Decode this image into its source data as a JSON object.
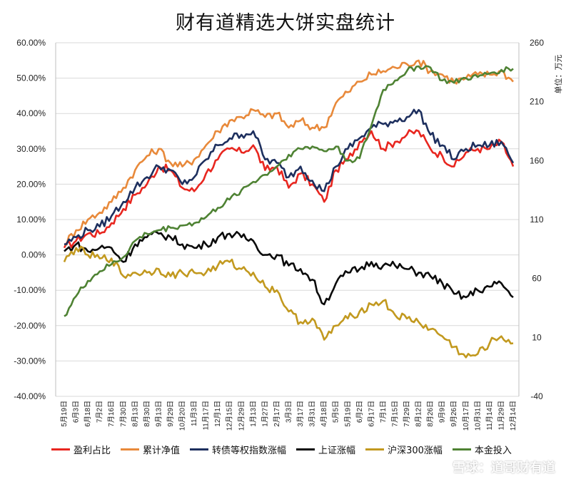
{
  "watermark": "雪球：道哥财有道",
  "colors": {
    "profit_ratio": "#e8261f",
    "cumulative_nav": "#e8893a",
    "cb_index": "#1d2f5e",
    "sse": "#0a0a0a",
    "csi300": "#c2991f",
    "principal": "#4e8233",
    "grid": "#d9d9d9"
  },
  "chart_data": {
    "type": "line",
    "title": "财有道精选大饼实盘统计",
    "y_left": {
      "ticks": [
        "60.00%",
        "50.00%",
        "40.00%",
        "30.00%",
        "20.00%",
        "10.00%",
        "0.00%",
        "-10.00%",
        "-20.00%",
        "-30.00%",
        "-40.00%"
      ],
      "range": [
        -40,
        60
      ]
    },
    "y_right": {
      "label": "单位：万元",
      "ticks": [
        "260",
        "210",
        "160",
        "110",
        "60",
        "10",
        "-40"
      ],
      "range": [
        -40,
        260
      ]
    },
    "x": [
      "5月19日",
      "6月3日",
      "6月18日",
      "7月2日",
      "7月16日",
      "7月30日",
      "8月13日",
      "8月30日",
      "9月13日",
      "9月29日",
      "10月20日",
      "11月3日",
      "11月17日",
      "12月1日",
      "12月15日",
      "12月29日",
      "1月13日",
      "1月27日",
      "2月17日",
      "3月3日",
      "3月17日",
      "3月31日",
      "4月18日",
      "5月5日",
      "5月19日",
      "6月2日",
      "6月17日",
      "7月1日",
      "7月15日",
      "7月29日",
      "8月12日",
      "8月26日",
      "9月9日",
      "9月26日",
      "10月17日",
      "10月31日",
      "11月14日",
      "11月29日",
      "12月14日"
    ],
    "series": [
      {
        "name": "盈利占比",
        "axis": "left",
        "color_key": "profit_ratio",
        "values": [
          2,
          4,
          6,
          6,
          9,
          13,
          17,
          20,
          25,
          24,
          19,
          18,
          23,
          27,
          30,
          29,
          31,
          24,
          25,
          19,
          23,
          20,
          15,
          24,
          27,
          32,
          35,
          30,
          32,
          34,
          35,
          30,
          28,
          25,
          29,
          30,
          30,
          32,
          25
        ]
      },
      {
        "name": "累计净值",
        "axis": "left",
        "color_key": "cumulative_nav",
        "values": [
          3,
          7,
          10,
          12,
          15,
          19,
          24,
          28,
          30,
          26,
          25,
          27,
          31,
          35,
          38,
          39,
          41,
          39,
          40,
          36,
          38,
          36,
          36,
          43,
          46,
          49,
          51,
          52,
          53,
          54,
          55,
          52,
          51,
          49,
          50,
          51,
          51,
          52,
          49
        ]
      },
      {
        "name": "转债等权指数涨幅",
        "axis": "left",
        "color_key": "cb_index",
        "values": [
          3,
          5,
          7,
          8,
          11,
          15,
          19,
          22,
          25,
          24,
          20,
          22,
          27,
          31,
          33,
          34,
          35,
          27,
          26,
          22,
          25,
          21,
          18,
          25,
          30,
          33,
          36,
          37,
          38,
          39,
          41,
          34,
          31,
          27,
          30,
          31,
          31,
          32,
          26
        ]
      },
      {
        "name": "上证涨幅",
        "axis": "left",
        "color_key": "sse",
        "values": [
          1,
          3,
          1,
          2,
          2,
          -2,
          3,
          5,
          6,
          5,
          3,
          2,
          3,
          5,
          6,
          5,
          4,
          0,
          0,
          -3,
          -4,
          -7,
          -14,
          -8,
          -5,
          -4,
          -2,
          -3,
          -3,
          -4,
          -5,
          -6,
          -8,
          -11,
          -12,
          -10,
          -9,
          -8,
          -12
        ]
      },
      {
        "name": "沪深300涨幅",
        "axis": "left",
        "color_key": "csi300",
        "values": [
          -2,
          2,
          0,
          -1,
          -1,
          -6,
          -5,
          -5,
          -4,
          -6,
          -5,
          -5,
          -5,
          -3,
          -2,
          -4,
          -5,
          -9,
          -10,
          -16,
          -19,
          -18,
          -24,
          -20,
          -18,
          -16,
          -14,
          -13,
          -17,
          -18,
          -19,
          -21,
          -23,
          -26,
          -29,
          -28,
          -25,
          -23,
          -25
        ]
      },
      {
        "name": "本金投入",
        "axis": "right",
        "color_key": "principal",
        "values": [
          28,
          45,
          58,
          66,
          72,
          78,
          92,
          98,
          101,
          103,
          105,
          107,
          112,
          120,
          127,
          135,
          142,
          148,
          155,
          165,
          170,
          172,
          168,
          172,
          160,
          162,
          190,
          220,
          228,
          236,
          240,
          239,
          228,
          226,
          230,
          231,
          234,
          237,
          238
        ]
      }
    ]
  }
}
